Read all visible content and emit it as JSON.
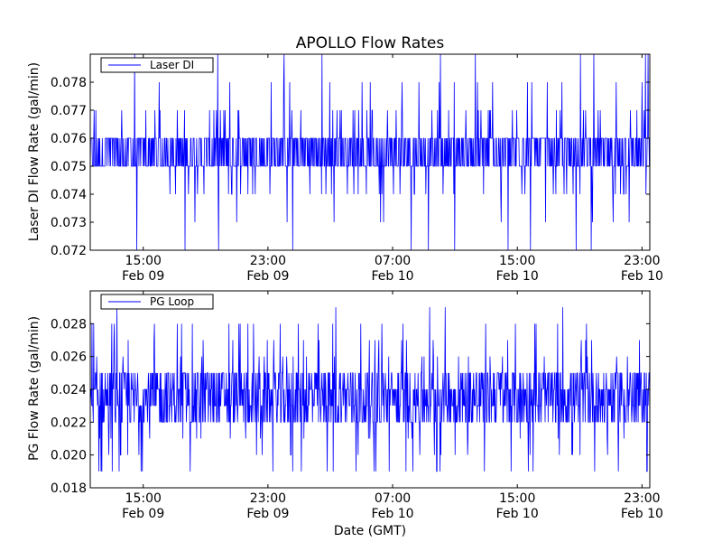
{
  "chart_data": [
    {
      "type": "line",
      "title": "APOLLO Flow Rates",
      "xlabel": "",
      "ylabel": "Laser DI Flow Rate (gal/min)",
      "ylim": [
        0.072,
        0.079
      ],
      "yticks": [
        0.072,
        0.073,
        0.074,
        0.075,
        0.076,
        0.077,
        0.078
      ],
      "ytick_labels": [
        "0.072",
        "0.073",
        "0.074",
        "0.075",
        "0.076",
        "0.077",
        "0.078"
      ],
      "xlim_hours": [
        11.6,
        47.5
      ],
      "xticks_hours": [
        15,
        23,
        31,
        39,
        47
      ],
      "xtick_labels": [
        [
          "15:00",
          "Feb 09"
        ],
        [
          "23:00",
          "Feb 09"
        ],
        [
          "07:00",
          "Feb 10"
        ],
        [
          "15:00",
          "Feb 10"
        ],
        [
          "23:00",
          "Feb 10"
        ]
      ],
      "legend": {
        "label": "Laser DI",
        "loc": "upper-left"
      },
      "series": [
        {
          "name": "Laser DI",
          "color": "#0000ff",
          "typical_range": [
            0.075,
            0.076
          ],
          "min": 0.072,
          "max": 0.079,
          "noise_levels": [
            0.072,
            0.073,
            0.074,
            0.075,
            0.076,
            0.077,
            0.078,
            0.079
          ]
        }
      ]
    },
    {
      "type": "line",
      "title": "",
      "xlabel": "Date (GMT)",
      "ylabel": "PG Flow Rate (gal/min)",
      "ylim": [
        0.018,
        0.03
      ],
      "yticks": [
        0.018,
        0.02,
        0.022,
        0.024,
        0.026,
        0.028
      ],
      "ytick_labels": [
        "0.018",
        "0.020",
        "0.022",
        "0.024",
        "0.026",
        "0.028"
      ],
      "xlim_hours": [
        11.6,
        47.5
      ],
      "xticks_hours": [
        15,
        23,
        31,
        39,
        47
      ],
      "xtick_labels": [
        [
          "15:00",
          "Feb 09"
        ],
        [
          "23:00",
          "Feb 09"
        ],
        [
          "07:00",
          "Feb 10"
        ],
        [
          "15:00",
          "Feb 10"
        ],
        [
          "23:00",
          "Feb 10"
        ]
      ],
      "legend": {
        "label": "PG Loop",
        "loc": "upper-left"
      },
      "series": [
        {
          "name": "PG Loop",
          "color": "#0000ff",
          "typical_range": [
            0.022,
            0.025
          ],
          "min": 0.019,
          "max": 0.029,
          "noise_levels": [
            0.019,
            0.02,
            0.021,
            0.022,
            0.023,
            0.024,
            0.025,
            0.026,
            0.027,
            0.028,
            0.029
          ]
        }
      ]
    }
  ]
}
